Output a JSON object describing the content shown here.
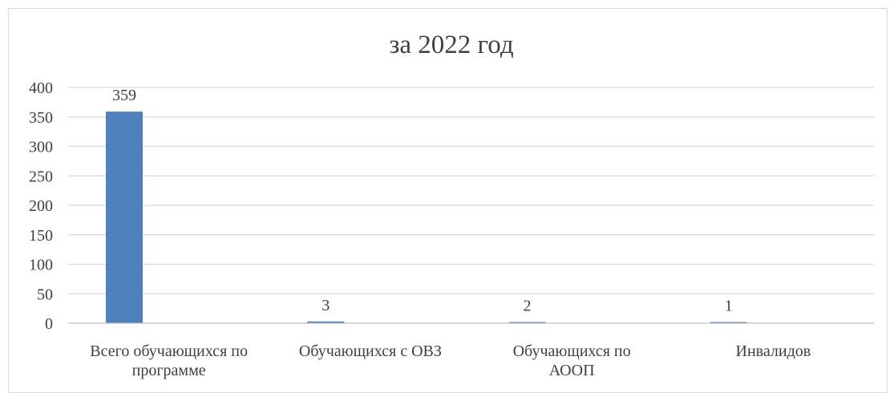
{
  "chart_data": {
    "type": "bar",
    "title": "за 2022 год",
    "categories": [
      [
        "Всего обучающихся по",
        "программе"
      ],
      [
        "Обучающихся с ОВЗ"
      ],
      [
        "Обучающихся по",
        "АООП"
      ],
      [
        "Инвалидов"
      ]
    ],
    "values": [
      359,
      3,
      2,
      1
    ],
    "ylim": [
      0,
      400
    ],
    "yticks": [
      0,
      50,
      100,
      150,
      200,
      250,
      300,
      350,
      400
    ],
    "grid": true,
    "bar_color": "#4f81bd",
    "grid_color": "#d9d9d9",
    "axis_color": "#bfbfbf",
    "text_color": "#404040",
    "legend": false
  }
}
